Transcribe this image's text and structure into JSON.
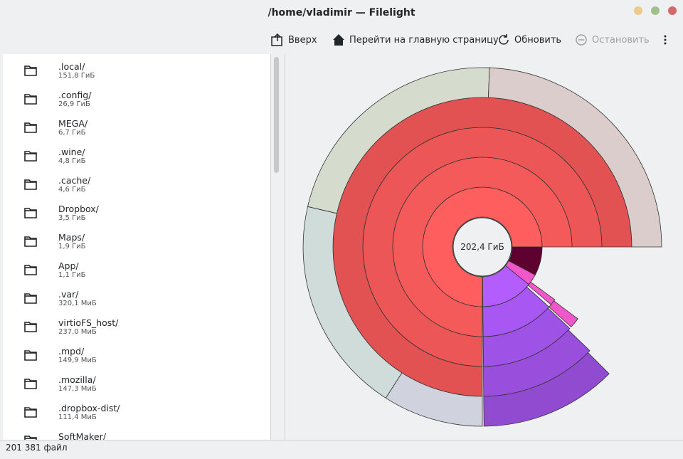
{
  "window": {
    "title": "/home/vladimir — Filelight"
  },
  "toolbar": [
    "Вверх",
    "Перейти на главную страницу",
    "Обновить",
    "Остановить"
  ],
  "files": [
    {
      "name": ".local/",
      "size": "151,8 ГиБ"
    },
    {
      "name": ".config/",
      "size": "26,9 ГиБ"
    },
    {
      "name": "MEGA/",
      "size": "6,7 ГиБ"
    },
    {
      "name": ".wine/",
      "size": "4,8 ГиБ"
    },
    {
      "name": ".cache/",
      "size": "4,6 ГиБ"
    },
    {
      "name": "Dropbox/",
      "size": "3,5 ГиБ"
    },
    {
      "name": "Maps/",
      "size": "1,9 ГиБ"
    },
    {
      "name": "App/",
      "size": "1,1 ГиБ"
    },
    {
      "name": ".var/",
      "size": "320,1 МиБ"
    },
    {
      "name": "virtioFS_host/",
      "size": "237,0 МиБ"
    },
    {
      "name": ".mpd/",
      "size": "149,9 МиБ"
    },
    {
      "name": ".mozilla/",
      "size": "147,3 МиБ"
    },
    {
      "name": ".dropbox-dist/",
      "size": "111,4 МиБ"
    },
    {
      "name": "SoftMaker/"
    }
  ],
  "chart_center": "202,4 ГиБ",
  "status": "201 381 файл"
}
